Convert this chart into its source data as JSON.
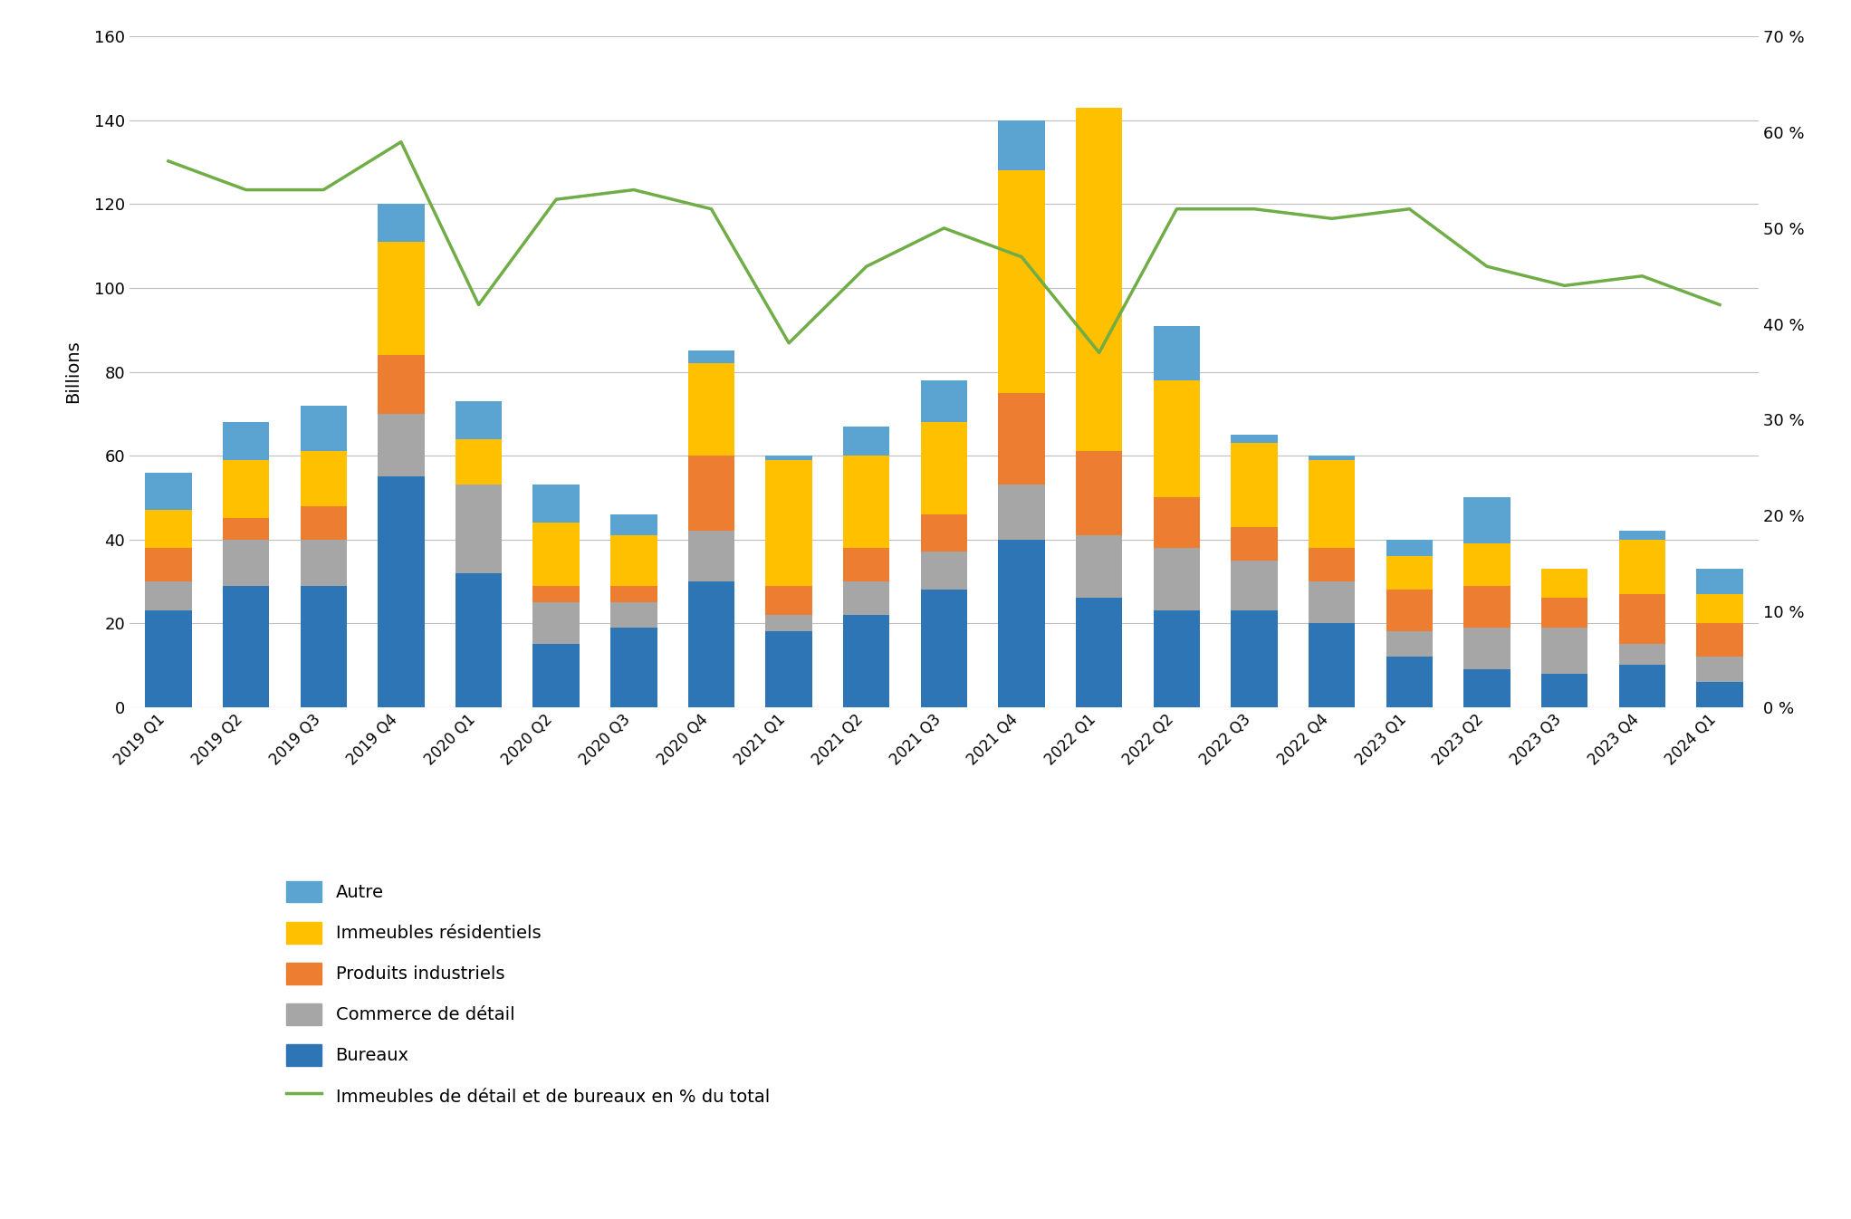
{
  "quarters": [
    "2019 Q1",
    "2019 Q2",
    "2019 Q3",
    "2019 Q4",
    "2020 Q1",
    "2020 Q2",
    "2020 Q3",
    "2020 Q4",
    "2021 Q1",
    "2021 Q2",
    "2021 Q3",
    "2021 Q4",
    "2022 Q1",
    "2022 Q2",
    "2022 Q3",
    "2022 Q4",
    "2023 Q1",
    "2023 Q2",
    "2023 Q3",
    "2023 Q4",
    "2024 Q1"
  ],
  "bureaux": [
    23,
    29,
    29,
    55,
    32,
    15,
    19,
    30,
    18,
    22,
    28,
    40,
    26,
    23,
    23,
    20,
    12,
    9,
    8,
    10,
    6
  ],
  "commerce_detail": [
    7,
    11,
    11,
    15,
    21,
    10,
    6,
    12,
    4,
    8,
    9,
    13,
    15,
    15,
    12,
    10,
    6,
    10,
    11,
    5,
    6
  ],
  "produits_industriels": [
    8,
    5,
    8,
    14,
    0,
    4,
    4,
    18,
    7,
    8,
    9,
    22,
    20,
    12,
    8,
    8,
    10,
    10,
    7,
    12,
    8
  ],
  "immeubles_residentiels": [
    9,
    14,
    13,
    27,
    11,
    15,
    12,
    22,
    30,
    22,
    22,
    53,
    82,
    28,
    20,
    21,
    8,
    10,
    7,
    13,
    7
  ],
  "autre": [
    9,
    9,
    11,
    9,
    9,
    9,
    5,
    3,
    1,
    7,
    10,
    12,
    0,
    13,
    2,
    1,
    4,
    11,
    0,
    2,
    6
  ],
  "line_pct": [
    57,
    54,
    54,
    59,
    42,
    53,
    54,
    52,
    38,
    46,
    50,
    47,
    37,
    52,
    52,
    51,
    52,
    46,
    44,
    45,
    42
  ],
  "bar_colors": {
    "bureaux": "#2E75B6",
    "commerce_detail": "#A6A6A6",
    "produits_industriels": "#ED7D31",
    "immeubles_residentiels": "#FFC000",
    "autre": "#5BA3D0"
  },
  "line_color": "#70AD47",
  "ylabel_left": "Billions",
  "ylim_left": [
    0,
    160
  ],
  "ylim_right": [
    0,
    70
  ],
  "yticks_left": [
    0,
    20,
    40,
    60,
    80,
    100,
    120,
    140,
    160
  ],
  "yticks_right": [
    0,
    10,
    20,
    30,
    40,
    50,
    60,
    70
  ],
  "ytick_labels_right": [
    "0 %",
    "10 %",
    "20 %",
    "30 %",
    "40 %",
    "50 %",
    "60 %",
    "70 %"
  ],
  "background_color": "#FFFFFF",
  "grid_color": "#BFBFBF"
}
